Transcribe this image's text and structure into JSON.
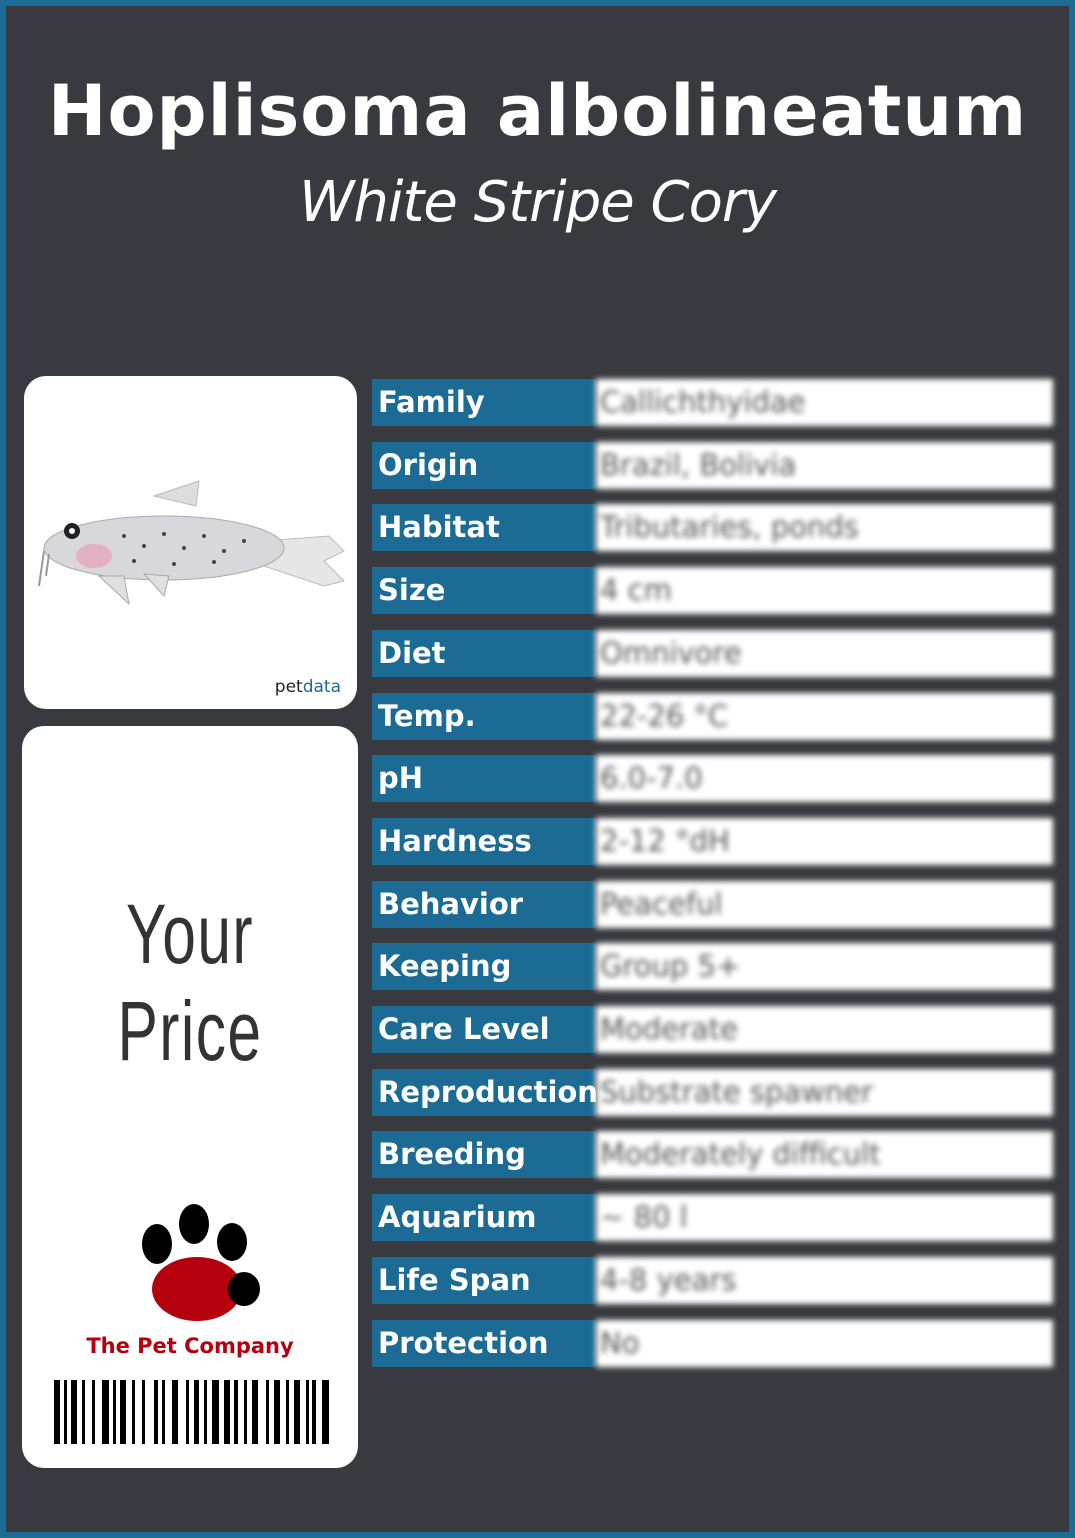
{
  "header": {
    "scientific_name": "Hoplisoma albolineatum",
    "common_name": "White Stripe Cory"
  },
  "photo": {
    "credit_prefix": "pet",
    "credit_suffix": "data",
    "icon": "fish-photo"
  },
  "price_card": {
    "label": "Your Price",
    "brand": "The Pet Company",
    "logo_icon": "paw-print-icon",
    "barcode_icon": "barcode-icon"
  },
  "colors": {
    "accent": "#1b6b94",
    "background": "#393a3f",
    "brand": "#b5000e"
  },
  "facts": [
    {
      "label": "Family",
      "value": "Callichthyidae"
    },
    {
      "label": "Origin",
      "value": "Brazil, Bolivia"
    },
    {
      "label": "Habitat",
      "value": "Tributaries, ponds"
    },
    {
      "label": "Size",
      "value": "4 cm"
    },
    {
      "label": "Diet",
      "value": "Omnivore"
    },
    {
      "label": "Temp.",
      "value": "22-26 °C"
    },
    {
      "label": "pH",
      "value": "6.0-7.0"
    },
    {
      "label": "Hardness",
      "value": "2-12 °dH"
    },
    {
      "label": "Behavior",
      "value": "Peaceful"
    },
    {
      "label": "Keeping",
      "value": "Group 5+"
    },
    {
      "label": "Care Level",
      "value": "Moderate"
    },
    {
      "label": "Reproduction",
      "value": "Substrate spawner"
    },
    {
      "label": "Breeding",
      "value": "Moderately difficult"
    },
    {
      "label": "Aquarium",
      "value": "~ 80 l"
    },
    {
      "label": "Life Span",
      "value": "4-8 years"
    },
    {
      "label": "Protection",
      "value": "No"
    }
  ]
}
